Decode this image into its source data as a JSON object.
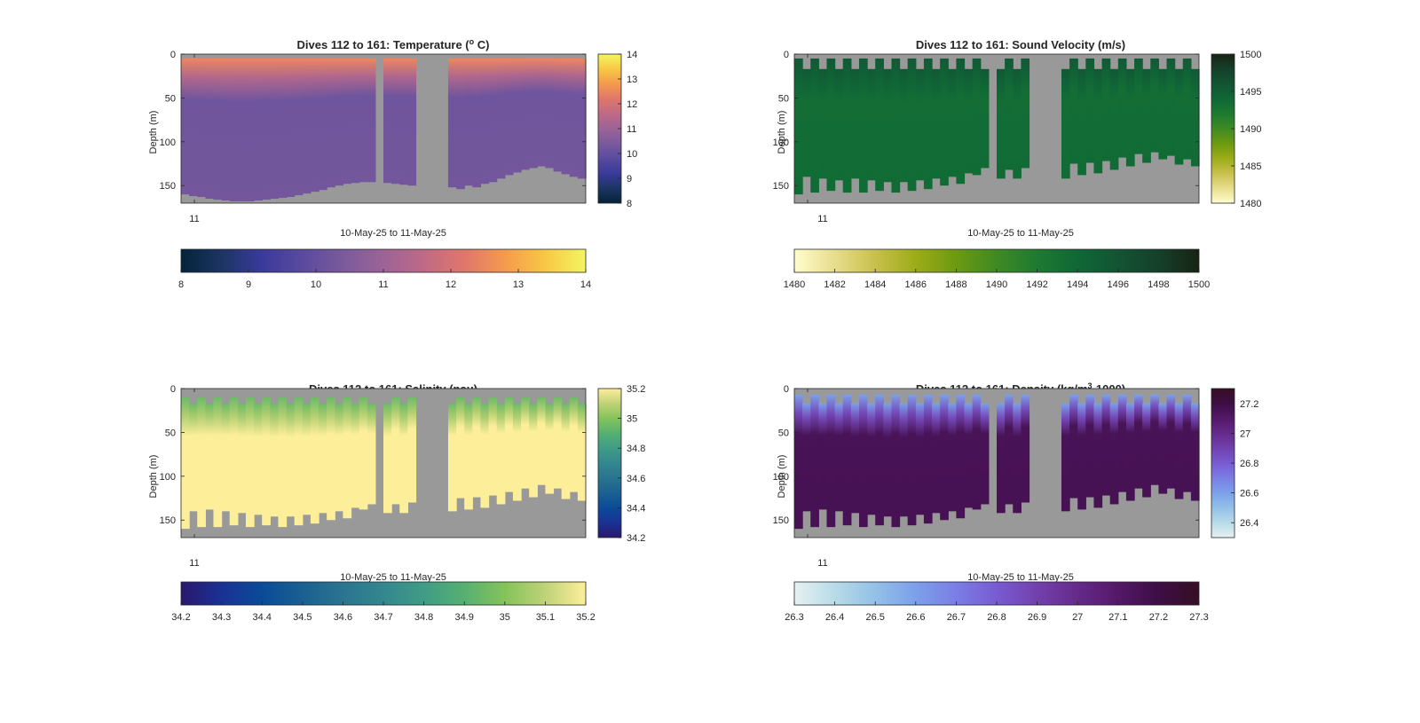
{
  "figure": {
    "background": "#ffffff",
    "missing_color": "#999999"
  },
  "chart_data": [
    {
      "type": "heatmap",
      "id": "temperature",
      "title": "Dives 112 to 161: Temperature (",
      "title_sup": "o",
      "title_end": " C)",
      "ylabel": "Depth (m)",
      "xlabel": "10-May-25 to 11-May-25",
      "x_tick_labels": [
        "11"
      ],
      "y_ticks": [
        0,
        50,
        100,
        150
      ],
      "ylim": [
        0,
        170
      ],
      "y_reversed": true,
      "n_profiles": 50,
      "gap_profiles": [
        24,
        29,
        30,
        31,
        32
      ],
      "data_top": [
        5
      ],
      "data_bottom": [
        160,
        162,
        163,
        165,
        166,
        167,
        168,
        168,
        168,
        167,
        166,
        165,
        164,
        163,
        161,
        159,
        157,
        155,
        152,
        150,
        148,
        147,
        146,
        146,
        0,
        147,
        148,
        149,
        150,
        0,
        0,
        0,
        0,
        152,
        154,
        150,
        152,
        148,
        146,
        142,
        138,
        135,
        132,
        130,
        128,
        130,
        134,
        137,
        140,
        142
      ],
      "surface_value": 12.5,
      "interior_value": 10.2,
      "colorbar": {
        "cmap": "thermal",
        "ticks": [
          8,
          9,
          10,
          11,
          12,
          13,
          14
        ],
        "range": [
          8,
          14
        ]
      }
    },
    {
      "type": "heatmap",
      "id": "sound_velocity",
      "title": "Dives 112 to 161: Sound Velocity (m/s)",
      "ylabel": "Depth (m)",
      "xlabel": "10-May-25 to 11-May-25",
      "x_tick_labels": [
        "11"
      ],
      "y_ticks": [
        0,
        50,
        100,
        150
      ],
      "ylim": [
        0,
        170
      ],
      "y_reversed": true,
      "n_profiles": 50,
      "gap_profiles": [
        24,
        29,
        30,
        31,
        32
      ],
      "data_top": [
        5,
        17
      ],
      "data_bottom": [
        160,
        140,
        158,
        142,
        156,
        144,
        158,
        142,
        158,
        144,
        156,
        146,
        158,
        146,
        156,
        144,
        154,
        142,
        150,
        140,
        148,
        136,
        138,
        130,
        0,
        142,
        132,
        142,
        130,
        0,
        0,
        0,
        0,
        142,
        125,
        138,
        124,
        136,
        122,
        132,
        118,
        128,
        114,
        124,
        112,
        120,
        116,
        126,
        120,
        128
      ],
      "surface_value": 1495.5,
      "interior_value": 1493.5,
      "colorbar": {
        "cmap": "speed",
        "ticks": [
          1480,
          1485,
          1490,
          1495,
          1500
        ],
        "range": [
          1480,
          1500
        ]
      }
    },
    {
      "type": "heatmap",
      "id": "salinity",
      "title": "Dives 112 to 161: Salinity (psu)",
      "ylabel": "Depth (m)",
      "xlabel": "10-May-25 to 11-May-25",
      "x_tick_labels": [
        "11"
      ],
      "y_ticks": [
        0,
        50,
        100,
        150
      ],
      "ylim": [
        0,
        170
      ],
      "y_reversed": true,
      "n_profiles": 50,
      "gap_profiles": [
        24,
        29,
        30,
        31,
        32
      ],
      "data_top": [
        10,
        17
      ],
      "data_bottom": [
        160,
        140,
        158,
        138,
        158,
        140,
        156,
        142,
        158,
        144,
        156,
        146,
        158,
        146,
        156,
        144,
        154,
        142,
        150,
        140,
        148,
        136,
        138,
        132,
        0,
        142,
        132,
        142,
        130,
        0,
        0,
        0,
        0,
        140,
        125,
        138,
        124,
        136,
        122,
        132,
        118,
        128,
        114,
        124,
        110,
        120,
        114,
        126,
        118,
        128
      ],
      "surface_value": 34.95,
      "interior_value": 35.2,
      "colorbar": {
        "cmap": "haline",
        "ticks": [
          34.2,
          34.4,
          34.6,
          34.8,
          35,
          35.2
        ],
        "range": [
          34.2,
          35.2
        ]
      }
    },
    {
      "type": "heatmap",
      "id": "density",
      "title": "Dives 112 to 161: Density (kg/m",
      "title_sup": "3",
      "title_end": "-1000)",
      "ylabel": "Depth (m)",
      "xlabel": "10-May-25 to 11-May-25",
      "x_tick_labels": [
        "11"
      ],
      "y_ticks": [
        0,
        50,
        100,
        150
      ],
      "ylim": [
        0,
        170
      ],
      "y_reversed": true,
      "n_profiles": 50,
      "gap_profiles": [
        24,
        29,
        30,
        31,
        32
      ],
      "data_top": [
        7,
        17
      ],
      "data_bottom": [
        160,
        140,
        158,
        138,
        158,
        140,
        156,
        142,
        158,
        144,
        156,
        146,
        158,
        146,
        156,
        144,
        154,
        142,
        150,
        140,
        148,
        136,
        138,
        132,
        0,
        142,
        132,
        142,
        130,
        0,
        0,
        0,
        0,
        140,
        125,
        138,
        124,
        136,
        122,
        132,
        118,
        128,
        114,
        124,
        110,
        120,
        114,
        126,
        118,
        128
      ],
      "surface_value": 26.6,
      "interior_value": 27.15,
      "colorbar": {
        "cmap": "dense",
        "ticks": [
          26.4,
          26.6,
          26.8,
          27,
          27.2
        ],
        "range": [
          26.3,
          27.3
        ]
      }
    }
  ],
  "horizontal_colorbars": [
    {
      "of": "temperature",
      "ticks": [
        "8",
        "9",
        "10",
        "11",
        "12",
        "13",
        "14"
      ]
    },
    {
      "of": "sound_velocity",
      "ticks": [
        "1480",
        "1482",
        "1484",
        "1486",
        "1488",
        "1490",
        "1492",
        "1494",
        "1496",
        "1498",
        "1500"
      ]
    },
    {
      "of": "salinity",
      "ticks": [
        "34.2",
        "34.3",
        "34.4",
        "34.5",
        "34.6",
        "34.7",
        "34.8",
        "34.9",
        "35",
        "35.1",
        "35.2"
      ]
    },
    {
      "of": "density",
      "ticks": [
        "26.3",
        "26.4",
        "26.5",
        "26.6",
        "26.7",
        "26.8",
        "26.9",
        "27",
        "27.1",
        "27.2",
        "27.3"
      ]
    }
  ],
  "colormaps": {
    "thermal": [
      "#04233a",
      "#1c3563",
      "#3a3a9a",
      "#5a4a9e",
      "#7a5a9c",
      "#9c6396",
      "#bf6a86",
      "#e0766b",
      "#f49a4d",
      "#f8c844",
      "#f2f662"
    ],
    "speed": [
      "#fffdcd",
      "#e8dd8c",
      "#c8c04c",
      "#9cac17",
      "#6c9a12",
      "#3f8a23",
      "#1e7a31",
      "#0f6836",
      "#135434",
      "#15402a",
      "#172313"
    ],
    "haline": [
      "#2a186c",
      "#1a3194",
      "#0a4b98",
      "#1a6091",
      "#2a7490",
      "#34878e",
      "#3f9c86",
      "#56b071",
      "#84c35a",
      "#c0d278",
      "#fdef9a"
    ],
    "dense": [
      "#e6f1f1",
      "#b8dbe8",
      "#93c0e7",
      "#7ca0ea",
      "#7b7ee4",
      "#785bd2",
      "#7241ad",
      "#652a8a",
      "#541868",
      "#3d0e45",
      "#360e24"
    ]
  }
}
